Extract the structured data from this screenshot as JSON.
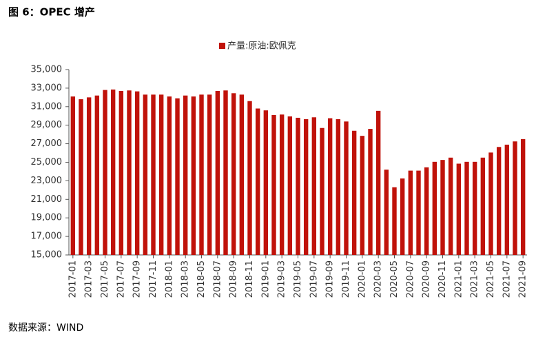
{
  "chart_data": {
    "type": "bar",
    "title": "图 6：OPEC 增产",
    "source": "数据来源：WIND",
    "categories": [
      "2017-01",
      null,
      "2017-03",
      null,
      "2017-05",
      null,
      "2017-07",
      null,
      "2017-09",
      null,
      "2017-11",
      null,
      "2018-01",
      null,
      "2018-03",
      null,
      "2018-05",
      null,
      "2018-07",
      null,
      "2018-09",
      null,
      "2018-11",
      null,
      "2019-01",
      null,
      "2019-03",
      null,
      "2019-05",
      null,
      "2019-07",
      null,
      "2019-09",
      null,
      "2019-11",
      null,
      "2020-01",
      null,
      "2020-03",
      null,
      "2020-05",
      null,
      "2020-07",
      null,
      "2020-09",
      null,
      "2020-11",
      null,
      "2021-01",
      null,
      "2021-03",
      null,
      "2021-05",
      null,
      "2021-07",
      null,
      "2021-09"
    ],
    "series": [
      {
        "name": "产量:原油:欧佩克",
        "color": "#c0120a",
        "values": [
          32100,
          31800,
          32000,
          32200,
          32800,
          32850,
          32700,
          32750,
          32650,
          32300,
          32300,
          32300,
          32100,
          31900,
          32200,
          32100,
          32300,
          32300,
          32700,
          32750,
          32450,
          32300,
          31600,
          30800,
          30600,
          30100,
          30150,
          29950,
          29800,
          29650,
          29850,
          28700,
          29750,
          29650,
          29400,
          28400,
          27850,
          28600,
          30550,
          24200,
          22300,
          23250,
          24100,
          24100,
          24450,
          25050,
          25250,
          25500,
          24850,
          25050,
          25050,
          25500,
          26050,
          26650,
          26900,
          27250,
          27500
        ]
      }
    ],
    "ylim": [
      15000,
      35000
    ],
    "yticks": [
      {
        "value": 15000,
        "label": "15,000"
      },
      {
        "value": 17000,
        "label": "17,000"
      },
      {
        "value": 19000,
        "label": "19,000"
      },
      {
        "value": 21000,
        "label": "21,000"
      },
      {
        "value": 23000,
        "label": "23,000"
      },
      {
        "value": 25000,
        "label": "25,000"
      },
      {
        "value": 27000,
        "label": "27,000"
      },
      {
        "value": 29000,
        "label": "29,000"
      },
      {
        "value": 31000,
        "label": "31,000"
      },
      {
        "value": 33000,
        "label": "33,000"
      },
      {
        "value": 35000,
        "label": "35,000"
      }
    ],
    "grid": false,
    "legend": "top"
  }
}
